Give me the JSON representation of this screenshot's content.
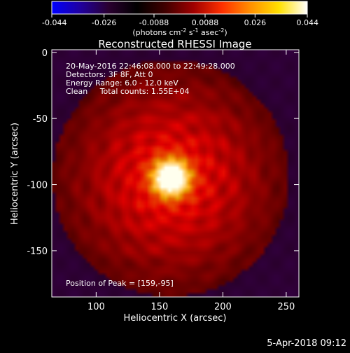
{
  "colorbar": {
    "ticks": [
      "-0.044",
      "-0.026",
      "-0.0088",
      "0.0088",
      "0.026",
      "0.044"
    ],
    "units_main": "(photons cm",
    "units_exp1": "-2",
    "units_mid": " s",
    "units_exp2": "-1",
    "units_mid2": " asec",
    "units_exp3": "-2",
    "units_close": ")",
    "stops": [
      "#0000ff",
      "#2000a0",
      "#2a0030",
      "#000000",
      "#400000",
      "#a00000",
      "#ff3000",
      "#ff9000",
      "#ffe000",
      "#ffffff"
    ]
  },
  "chart_data": {
    "type": "heatmap",
    "title": "Reconstructed RHESSI Image",
    "xlabel": "Heliocentric X (arcsec)",
    "ylabel": "Heliocentric Y (arcsec)",
    "xlim": [
      65,
      260
    ],
    "ylim": [
      -185,
      2
    ],
    "xticks": [
      100,
      150,
      200,
      250
    ],
    "yticks": [
      0,
      -50,
      -100,
      -150
    ],
    "peak": {
      "x": 159,
      "y": -95
    },
    "source_radius_arcsec": 52,
    "info_lines": [
      "20-May-2016 22:46:08.000 to 22:49:28.000",
      "Detectors: 3F 8F, Att 0",
      "Energy Range: 6.0 - 12.0 keV",
      "Clean     Total counts: 1.55E+04"
    ],
    "peak_label": "Position of Peak = [159,-95]"
  },
  "footer": {
    "timestamp": "5-Apr-2018 09:12"
  }
}
